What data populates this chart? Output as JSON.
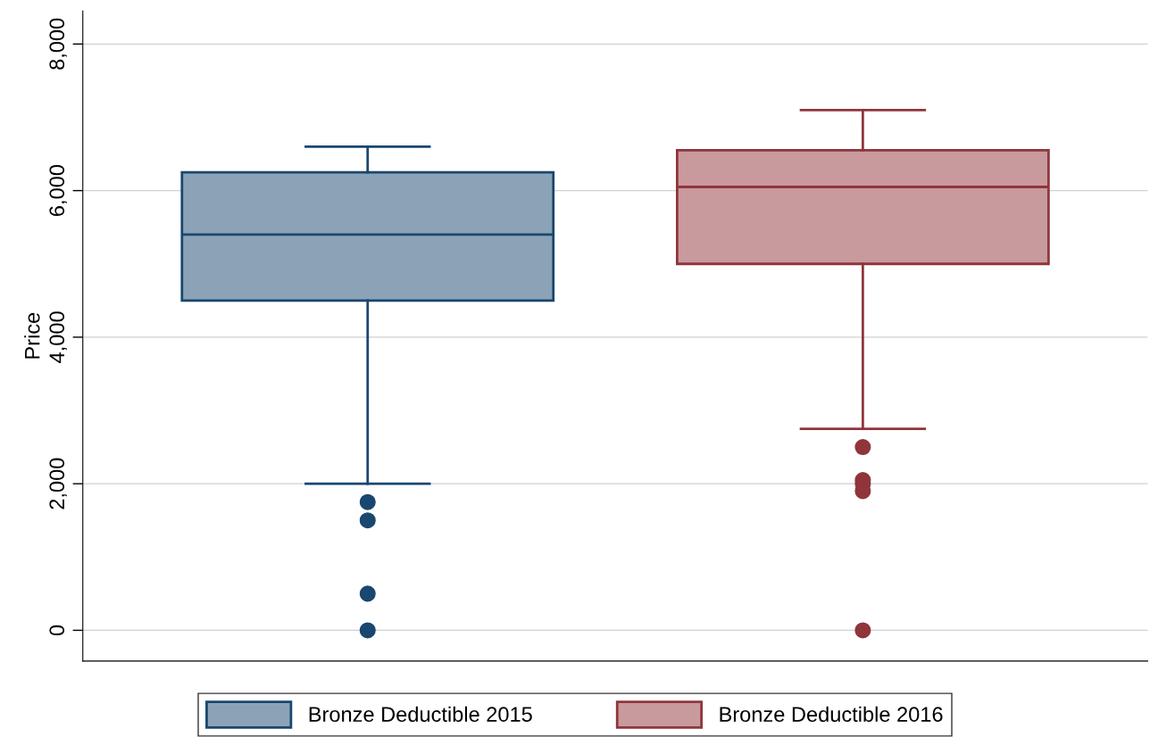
{
  "chart_data": {
    "type": "box",
    "ylabel": "Price",
    "categories": [
      null
    ],
    "series": [
      {
        "name": "Bronze Deductible 2015",
        "color": "#1a476f",
        "boxes": [
          {
            "low": 2000,
            "q1": 4500,
            "median": 5400,
            "q3": 6250,
            "high": 6600,
            "outliers": [
              1750,
              1500,
              500,
              0
            ]
          }
        ]
      },
      {
        "name": "Bronze Deductible 2016",
        "color": "#90353b",
        "boxes": [
          {
            "low": 2750,
            "q1": 5000,
            "median": 6050,
            "q3": 6550,
            "high": 7100,
            "outliers": [
              2500,
              2050,
              2000,
              1900,
              0
            ]
          }
        ]
      }
    ],
    "ylim": [
      -420,
      8450
    ],
    "yticks": [
      {
        "value": 0,
        "label": "0"
      },
      {
        "value": 2000,
        "label": "2,000"
      },
      {
        "value": 4000,
        "label": "4,000"
      },
      {
        "value": 6000,
        "label": "6,000"
      },
      {
        "value": 8000,
        "label": "8,000"
      }
    ],
    "grid": "y",
    "legend": "bottom"
  }
}
